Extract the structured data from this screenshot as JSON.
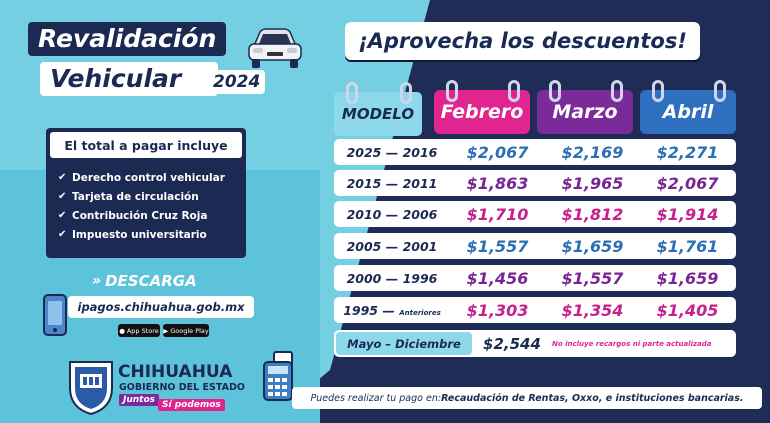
{
  "title": {
    "line1": "Revalidación",
    "line2": "Vehicular",
    "year": "2024"
  },
  "headline": "¡Aprovecha los descuentos!",
  "includes": {
    "heading": "El total a pagar incluye",
    "items": [
      "Derecho control vehicular",
      "Tarjeta de circulación",
      "Contribución Cruz Roja",
      "Impuesto universitario"
    ]
  },
  "download": {
    "label": "DESCARGA",
    "url": "ipagos.chihuahua.gob.mx",
    "appstore": "App Store",
    "googleplay": "Google Play"
  },
  "logo": {
    "name": "CHIHUAHUA",
    "sub": "GOBIERNO DEL ESTADO",
    "slogan1": "Juntos",
    "slogan2": "Sí podemos"
  },
  "table": {
    "model_header": "MODELO",
    "months": [
      "Febrero",
      "Marzo",
      "Abril"
    ],
    "rows": [
      {
        "model": "2025 — 2016",
        "note": "",
        "prices": [
          "$2,067",
          "$2,169",
          "$2,271"
        ],
        "color": "blue"
      },
      {
        "model": "2015 — 2011",
        "note": "",
        "prices": [
          "$1,863",
          "$1,965",
          "$2,067"
        ],
        "color": "purple"
      },
      {
        "model": "2010 — 2006",
        "note": "",
        "prices": [
          "$1,710",
          "$1,812",
          "$1,914"
        ],
        "color": "pink"
      },
      {
        "model": "2005 — 2001",
        "note": "",
        "prices": [
          "$1,557",
          "$1,659",
          "$1,761"
        ],
        "color": "blue"
      },
      {
        "model": "2000 — 1996",
        "note": "",
        "prices": [
          "$1,456",
          "$1,557",
          "$1,659"
        ],
        "color": "purple"
      },
      {
        "model": "1995 —",
        "note": "Anteriores",
        "prices": [
          "$1,303",
          "$1,354",
          "$1,405"
        ],
        "color": "pink"
      }
    ],
    "may_dec": {
      "label": "Mayo – Diciembre",
      "price": "$2,544",
      "note": "No incluye recargos ni parte actualizada"
    }
  },
  "footer": {
    "text_plain": "Puedes realizar tu pago en: ",
    "text_bold": "Recaudación de Rentas, Oxxo, e instituciones bancarias."
  },
  "colors": {
    "navy": "#1b2a52",
    "cyan": "#74cfe3",
    "pink": "#e0258f",
    "purple": "#7b2a9a",
    "blue": "#2f6fc0"
  }
}
